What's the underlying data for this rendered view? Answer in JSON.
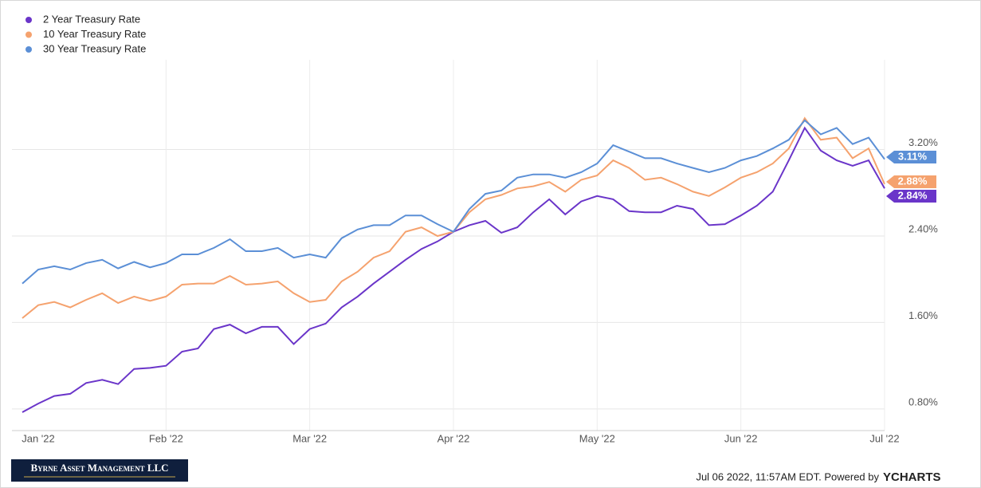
{
  "chart_data": {
    "type": "line",
    "categories": [
      "Jan '22",
      null,
      null,
      null,
      null,
      null,
      null,
      null,
      null,
      "Feb '22",
      null,
      null,
      null,
      null,
      null,
      null,
      null,
      null,
      "Mar '22",
      null,
      null,
      null,
      null,
      null,
      null,
      null,
      null,
      "Apr '22",
      null,
      null,
      null,
      null,
      null,
      null,
      null,
      null,
      "May '22",
      null,
      null,
      null,
      null,
      null,
      null,
      null,
      null,
      "Jun '22",
      null,
      null,
      null,
      null,
      null,
      null,
      null,
      null,
      "Jul '22"
    ],
    "series": [
      {
        "name": "2 Year Treasury Rate",
        "color": "#6a35c9",
        "last_label": "2.84%",
        "values": [
          0.77,
          0.85,
          0.92,
          0.94,
          1.04,
          1.07,
          1.03,
          1.17,
          1.18,
          1.2,
          1.33,
          1.36,
          1.54,
          1.58,
          1.5,
          1.56,
          1.56,
          1.4,
          1.54,
          1.59,
          1.74,
          1.84,
          1.96,
          2.07,
          2.18,
          2.28,
          2.35,
          2.44,
          2.5,
          2.54,
          2.43,
          2.48,
          2.62,
          2.74,
          2.6,
          2.72,
          2.77,
          2.74,
          2.63,
          2.62,
          2.62,
          2.68,
          2.65,
          2.5,
          2.51,
          2.59,
          2.68,
          2.81,
          3.1,
          3.4,
          3.19,
          3.1,
          3.05,
          3.1,
          2.84
        ]
      },
      {
        "name": "10 Year Treasury Rate",
        "color": "#f5a26e",
        "last_label": "2.88%",
        "values": [
          1.64,
          1.76,
          1.79,
          1.74,
          1.81,
          1.87,
          1.78,
          1.84,
          1.8,
          1.84,
          1.95,
          1.96,
          1.96,
          2.03,
          1.95,
          1.96,
          1.98,
          1.87,
          1.79,
          1.81,
          1.98,
          2.07,
          2.2,
          2.26,
          2.44,
          2.48,
          2.4,
          2.44,
          2.62,
          2.74,
          2.78,
          2.84,
          2.86,
          2.9,
          2.81,
          2.92,
          2.96,
          3.1,
          3.03,
          2.92,
          2.94,
          2.88,
          2.81,
          2.77,
          2.85,
          2.94,
          2.99,
          3.07,
          3.21,
          3.49,
          3.29,
          3.31,
          3.12,
          3.21,
          2.88
        ]
      },
      {
        "name": "30 Year Treasury Rate",
        "color": "#5b8fd6",
        "last_label": "3.11%",
        "values": [
          1.96,
          2.09,
          2.12,
          2.09,
          2.15,
          2.18,
          2.1,
          2.16,
          2.11,
          2.15,
          2.23,
          2.23,
          2.29,
          2.37,
          2.26,
          2.26,
          2.29,
          2.2,
          2.23,
          2.2,
          2.38,
          2.46,
          2.5,
          2.5,
          2.59,
          2.59,
          2.51,
          2.44,
          2.65,
          2.79,
          2.82,
          2.94,
          2.97,
          2.97,
          2.94,
          2.99,
          3.07,
          3.24,
          3.18,
          3.12,
          3.12,
          3.07,
          3.03,
          2.99,
          3.03,
          3.1,
          3.14,
          3.21,
          3.29,
          3.47,
          3.34,
          3.4,
          3.25,
          3.31,
          3.11
        ]
      }
    ],
    "ylim": [
      0.6,
      4.03
    ],
    "yticks": [
      {
        "value": 0.8,
        "label": "0.80%"
      },
      {
        "value": 1.6,
        "label": "1.60%"
      },
      {
        "value": 2.4,
        "label": "2.40%"
      },
      {
        "value": 3.2,
        "label": "3.20%"
      }
    ],
    "grid": true,
    "legend": "top-left"
  },
  "footer": {
    "logo": "Byrne Asset Management LLC",
    "timestamp": "Jul 06 2022, 11:57AM EDT. Powered by",
    "brand": "YCHARTS"
  }
}
